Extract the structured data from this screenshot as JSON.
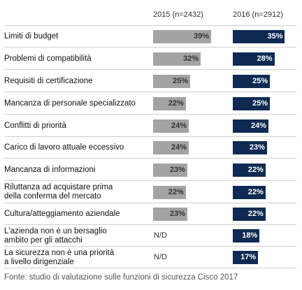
{
  "chart_data": {
    "type": "bar",
    "title": "",
    "xlabel": "",
    "ylabel": "",
    "xlim": [
      0,
      45
    ],
    "series": [
      {
        "name": "2015 (n=2432)",
        "color": "#a3a3a3"
      },
      {
        "name": "2016 (n=2912)",
        "color": "#0e2a52"
      }
    ],
    "categories": [
      "Limiti di budget",
      "Problemi di compatibilità",
      "Requisiti di certificazione",
      "Mancanza di personale specializzato",
      "Conflitti di priorità",
      "Carico di lavoro attuale eccessivo",
      "Mancanza di informazioni",
      "Riluttanza ad acquistare prima della conferma del mercato",
      "Cultura/atteggiamento aziendale",
      "L'azienda non è un bersaglio ambito per gli attacchi",
      "La sicurezza non è una priorità a livello dirigenziale"
    ],
    "category_lines": [
      [
        "Limiti di budget"
      ],
      [
        "Problemi di compatibilità"
      ],
      [
        "Requisiti di certificazione"
      ],
      [
        "Mancanza di personale specializzato"
      ],
      [
        "Conflitti di priorità"
      ],
      [
        "Carico di lavoro attuale eccessivo"
      ],
      [
        "Mancanza di informazioni"
      ],
      [
        "Riluttanza ad acquistare prima",
        "della conferma del mercato"
      ],
      [
        "Cultura/atteggiamento aziendale"
      ],
      [
        "L'azienda non è un bersaglio",
        "ambito per gli attacchi"
      ],
      [
        "La sicurezza non è una priorità",
        "a livello dirigenziale"
      ]
    ],
    "values_2015": [
      39,
      32,
      25,
      22,
      24,
      24,
      23,
      22,
      23,
      null,
      null
    ],
    "values_2016": [
      35,
      28,
      25,
      25,
      24,
      23,
      22,
      22,
      22,
      18,
      17
    ],
    "labels_2015": [
      "39%",
      "32%",
      "25%",
      "22%",
      "24%",
      "24%",
      "23%",
      "22%",
      "23%",
      "N/D",
      "N/D"
    ],
    "labels_2016": [
      "35%",
      "28%",
      "25%",
      "25%",
      "24%",
      "23%",
      "22%",
      "22%",
      "22%",
      "18%",
      "17%"
    ]
  },
  "headers": {
    "col_2015": "2015 (n=2432)",
    "col_2016": "2016 (n=2912)"
  },
  "source": "Fonte: studio di valutazione sulle funzioni di sicurezza Cisco 2017"
}
